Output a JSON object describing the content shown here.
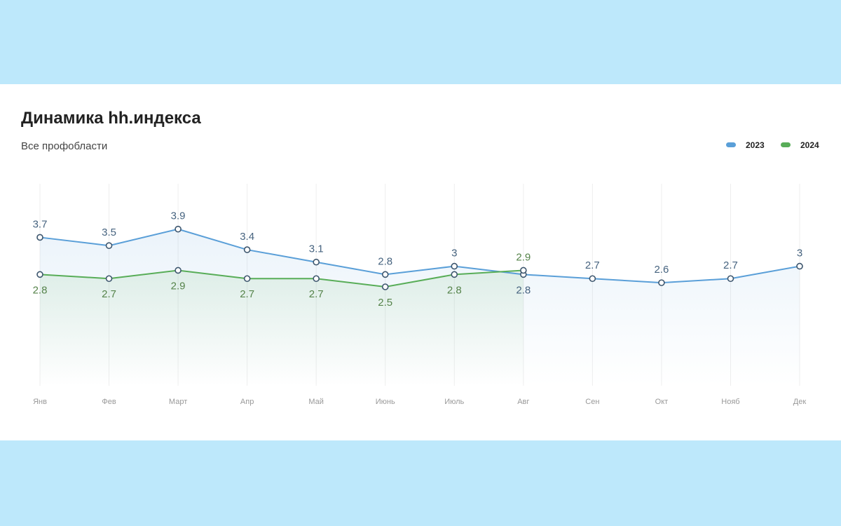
{
  "chart_data": {
    "type": "line",
    "title": "Динамика hh.индекса",
    "subtitle": "Все профобласти",
    "categories": [
      "Янв",
      "Фев",
      "Март",
      "Апр",
      "Май",
      "Июнь",
      "Июль",
      "Авг",
      "Сен",
      "Окт",
      "Нояб",
      "Дек"
    ],
    "series": [
      {
        "name": "2023",
        "color": "#5a9fd8",
        "label_color": "#46637f",
        "values": [
          3.7,
          3.5,
          3.9,
          3.4,
          3.1,
          2.8,
          3,
          2.8,
          2.7,
          2.6,
          2.7,
          3
        ]
      },
      {
        "name": "2024",
        "color": "#58ad58",
        "label_color": "#55834a",
        "values": [
          2.8,
          2.7,
          2.9,
          2.7,
          2.7,
          2.5,
          2.8,
          2.9,
          null,
          null,
          null,
          null
        ]
      }
    ],
    "ylim": [
      0,
      5
    ],
    "grid": true,
    "legend": "top-right"
  }
}
